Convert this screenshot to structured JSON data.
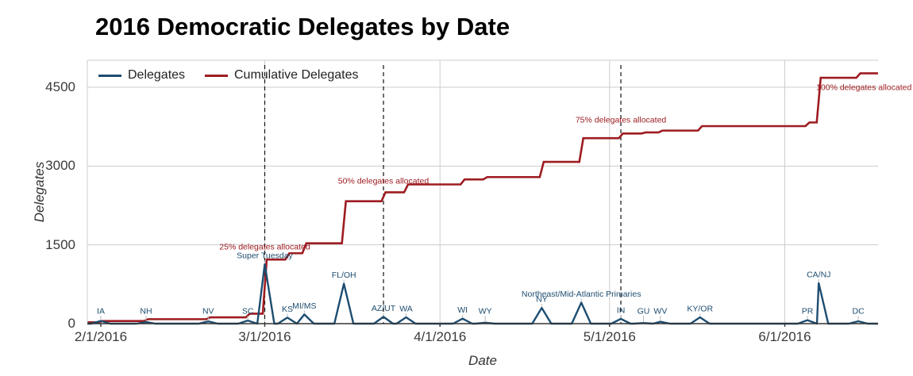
{
  "title": "2016 Democratic Delegates by Date",
  "legend": [
    {
      "label": "Delegates",
      "color": "#1d4d70"
    },
    {
      "label": "Cumulative Delegates",
      "color": "#9e1c21"
    }
  ],
  "axes": {
    "y": {
      "title": "Delegates",
      "ticks": [
        0,
        1500,
        3000,
        4500
      ]
    },
    "x": {
      "title": "Date",
      "ticks": [
        {
          "label": "2/1/2016",
          "day": 0
        },
        {
          "label": "3/1/2016",
          "day": 29
        },
        {
          "label": "4/1/2016",
          "day": 60
        },
        {
          "label": "5/1/2016",
          "day": 90
        },
        {
          "label": "6/1/2016",
          "day": 121
        }
      ]
    }
  },
  "chart_data": {
    "type": "line",
    "x_unit": "days since 2/1/2016",
    "ylim": [
      0,
      5000
    ],
    "grid": true,
    "legend_position": "top-left",
    "series_names": [
      "Delegates",
      "Cumulative Delegates"
    ],
    "colors": {
      "delegates": "#1d4d70",
      "cumulative": "#9e1c21",
      "grid": "#cccccc",
      "axis": "#333333",
      "dashed": "#111111",
      "leader": "#bbbbbb"
    },
    "events": [
      {
        "label": "IA",
        "date": "2/1/2016",
        "day": 0,
        "delegates": 52,
        "cumulative": 50
      },
      {
        "label": "NH",
        "date": "2/9/2016",
        "day": 8,
        "delegates": 32,
        "cumulative": 85
      },
      {
        "label": "NV",
        "date": "2/20/2016",
        "day": 19,
        "delegates": 43,
        "cumulative": 120
      },
      {
        "label": "SC",
        "date": "2/27/2016",
        "day": 26,
        "delegates": 59,
        "cumulative": 190
      },
      {
        "label": "Super Tuesday",
        "date": "3/1/2016",
        "day": 29,
        "delegates": 1130,
        "cumulative": 1220
      },
      {
        "label": "KS",
        "date": "3/5/2016",
        "day": 33,
        "delegates": 115,
        "cumulative": 1340
      },
      {
        "label": "MI/MS",
        "date": "3/8/2016",
        "day": 36,
        "delegates": 175,
        "cumulative": 1530
      },
      {
        "label": "FL/OH",
        "date": "3/15/2016",
        "day": 43,
        "delegates": 760,
        "cumulative": 2330
      },
      {
        "label": "AZ/UT",
        "date": "3/22/2016",
        "day": 50,
        "delegates": 130,
        "cumulative": 2500
      },
      {
        "label": "WA",
        "date": "3/26/2016",
        "day": 54,
        "delegates": 120,
        "cumulative": 2650
      },
      {
        "label": "WI",
        "date": "4/5/2016",
        "day": 64,
        "delegates": 96,
        "cumulative": 2745
      },
      {
        "label": "WY",
        "date": "4/9/2016",
        "day": 68,
        "delegates": 18,
        "cumulative": 2790
      },
      {
        "label": "NY",
        "date": "4/19/2016",
        "day": 78,
        "delegates": 300,
        "cumulative": 3080
      },
      {
        "label": "Northeast/Mid-Atlantic Primaries",
        "date": "4/26/2016",
        "day": 85,
        "delegates": 400,
        "cumulative": 3530
      },
      {
        "label": "IN",
        "date": "5/3/2016",
        "day": 92,
        "delegates": 92,
        "cumulative": 3620
      },
      {
        "label": "GU",
        "date": "5/7/2016",
        "day": 96,
        "delegates": 12,
        "cumulative": 3640
      },
      {
        "label": "WV",
        "date": "5/10/2016",
        "day": 99,
        "delegates": 37,
        "cumulative": 3675
      },
      {
        "label": "KY/OR",
        "date": "5/17/2016",
        "day": 106,
        "delegates": 120,
        "cumulative": 3760
      },
      {
        "label": "PR",
        "date": "6/5/2016",
        "day": 125,
        "delegates": 67,
        "cumulative": 3830
      },
      {
        "label": "CA/NJ",
        "date": "6/7/2016",
        "day": 127,
        "delegates": 770,
        "cumulative": 4680
      },
      {
        "label": "DC",
        "date": "6/14/2016",
        "day": 134,
        "delegates": 45,
        "cumulative": 4765
      }
    ],
    "annotations": [
      {
        "text": "25% delegates allocated",
        "day": 29,
        "value": 1465,
        "dashed_line": true
      },
      {
        "text": "50% delegates allocated",
        "day": 50,
        "value": 2718,
        "dashed_line": true
      },
      {
        "text": "75% delegates allocated",
        "day": 92,
        "value": 3881,
        "dashed_line": true
      },
      {
        "text": "100% delegates allocated",
        "day": 135,
        "value": 4500,
        "dashed_line": false
      }
    ]
  }
}
